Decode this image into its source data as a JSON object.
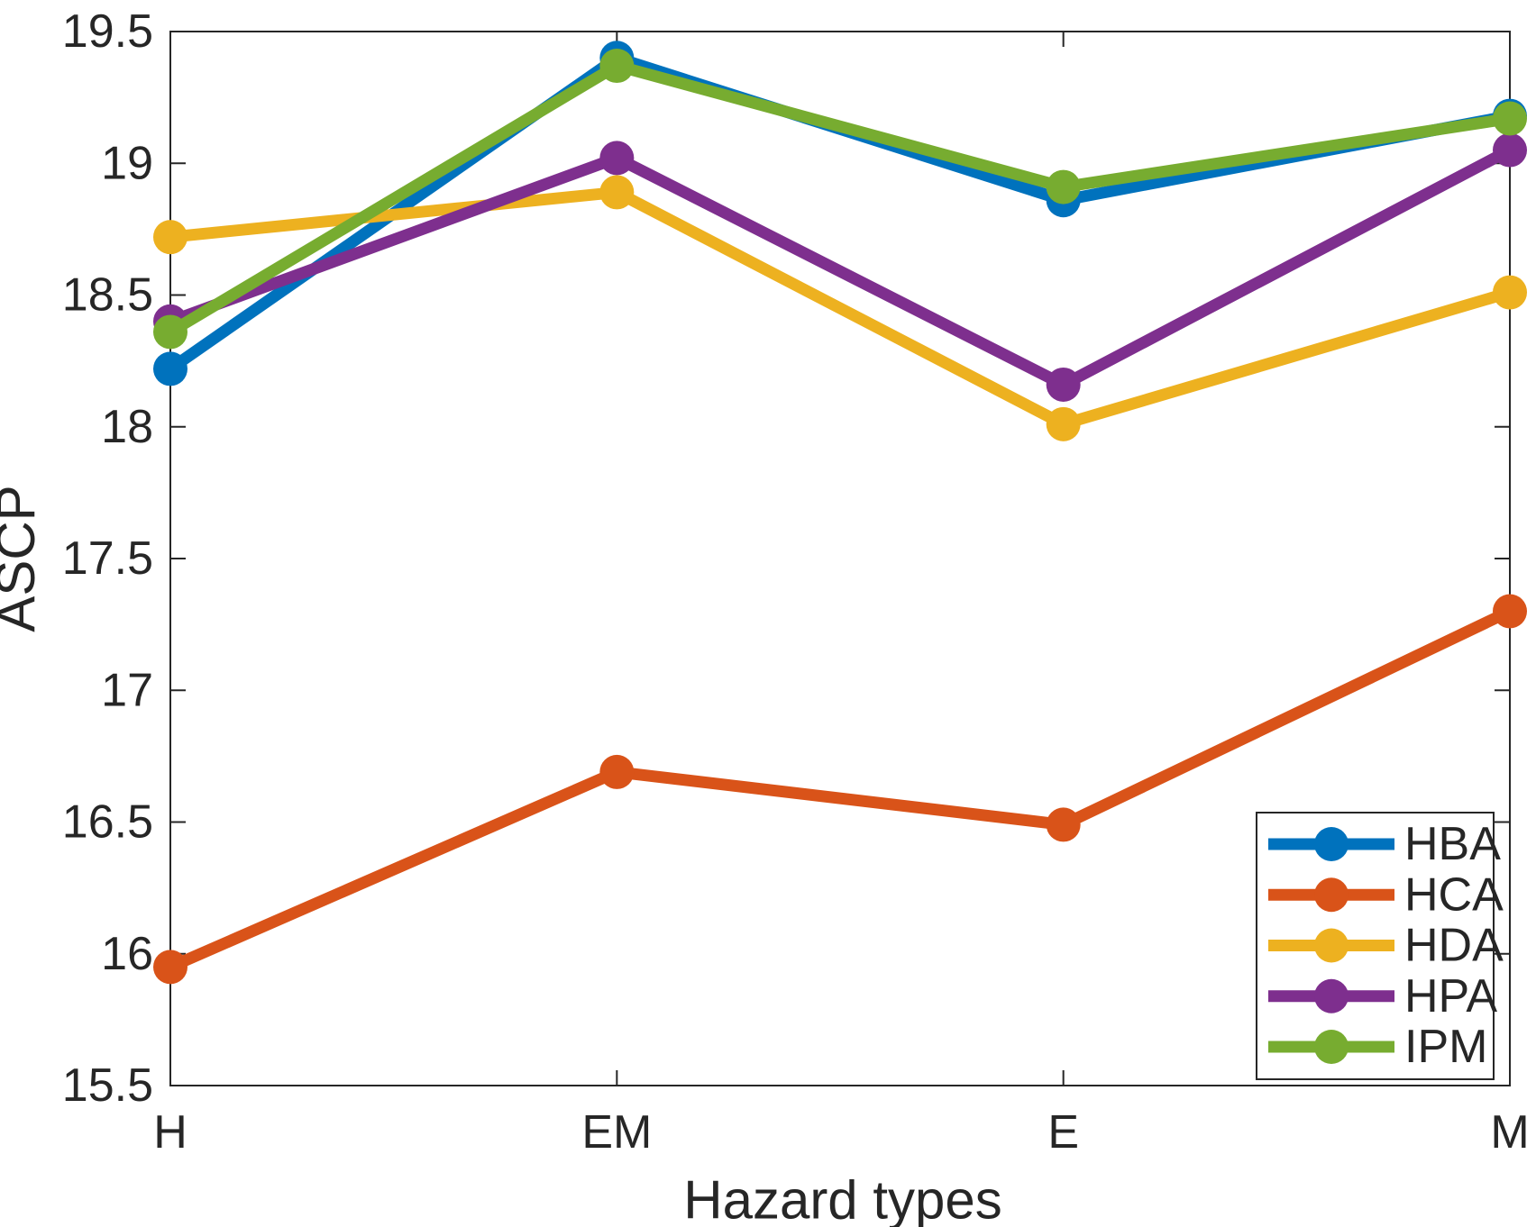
{
  "chart_data": {
    "type": "line",
    "title": "",
    "xlabel": "Hazard types",
    "ylabel": "ASCP",
    "categories": [
      "H",
      "EM",
      "E",
      "M"
    ],
    "series": [
      {
        "name": "HBA",
        "color": "#0072BD",
        "values": [
          18.22,
          19.4,
          18.86,
          19.18
        ]
      },
      {
        "name": "HCA",
        "color": "#D95319",
        "values": [
          15.95,
          16.69,
          16.49,
          17.3
        ]
      },
      {
        "name": "HDA",
        "color": "#EDB120",
        "values": [
          18.72,
          18.89,
          18.01,
          18.51
        ]
      },
      {
        "name": "HPA",
        "color": "#7E2F8E",
        "values": [
          18.4,
          19.02,
          18.16,
          19.05
        ]
      },
      {
        "name": "IPM",
        "color": "#77AC30",
        "values": [
          18.36,
          19.37,
          18.91,
          19.17
        ]
      }
    ],
    "ylim": [
      15.5,
      19.5
    ],
    "ytick_step": 0.5,
    "ytick_labels": [
      "15.5",
      "16",
      "16.5",
      "17",
      "17.5",
      "18",
      "18.5",
      "19",
      "19.5"
    ],
    "grid": false,
    "legend_position": "bottom-right",
    "legend_entries": [
      "HBA",
      "HCA",
      "HDA",
      "HPA",
      "IPM"
    ],
    "axis_color": "#262626",
    "background_color": "#FFFFFF"
  }
}
